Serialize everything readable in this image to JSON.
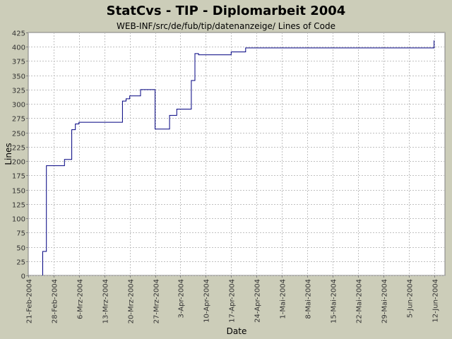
{
  "title": "StatCvs - TIP - Diplomarbeit 2004",
  "subtitle": "WEB-INF/src/de/fub/tip/datenanzeige/ Lines of Code",
  "chart_data": {
    "type": "line",
    "step": true,
    "xlabel": "Date",
    "ylabel": "Lines",
    "ylim": [
      0,
      425
    ],
    "xlim": [
      "2004-02-21",
      "2004-06-15"
    ],
    "grid": true,
    "line_color": "#000080",
    "yticks": [
      0,
      25,
      50,
      75,
      100,
      125,
      150,
      175,
      200,
      225,
      250,
      275,
      300,
      325,
      350,
      375,
      400,
      425
    ],
    "xticks": [
      {
        "date": "2004-02-21",
        "label": "21-Feb-2004"
      },
      {
        "date": "2004-02-28",
        "label": "28-Feb-2004"
      },
      {
        "date": "2004-03-06",
        "label": "6-Mrz-2004"
      },
      {
        "date": "2004-03-13",
        "label": "13-Mrz-2004"
      },
      {
        "date": "2004-03-20",
        "label": "20-Mrz-2004"
      },
      {
        "date": "2004-03-27",
        "label": "27-Mrz-2004"
      },
      {
        "date": "2004-04-03",
        "label": "3-Apr-2004"
      },
      {
        "date": "2004-04-10",
        "label": "10-Apr-2004"
      },
      {
        "date": "2004-04-17",
        "label": "17-Apr-2004"
      },
      {
        "date": "2004-04-24",
        "label": "24-Apr-2004"
      },
      {
        "date": "2004-05-01",
        "label": "1-Mai-2004"
      },
      {
        "date": "2004-05-08",
        "label": "8-Mai-2004"
      },
      {
        "date": "2004-05-15",
        "label": "15-Mai-2004"
      },
      {
        "date": "2004-05-22",
        "label": "22-Mai-2004"
      },
      {
        "date": "2004-05-29",
        "label": "29-Mai-2004"
      },
      {
        "date": "2004-06-05",
        "label": "5-Jun-2004"
      },
      {
        "date": "2004-06-12",
        "label": "12-Jun-2004"
      }
    ],
    "points": [
      [
        "2004-02-25",
        0
      ],
      [
        "2004-02-25",
        42
      ],
      [
        "2004-02-26",
        42
      ],
      [
        "2004-02-26",
        192
      ],
      [
        "2004-03-02",
        192
      ],
      [
        "2004-03-02",
        203
      ],
      [
        "2004-03-04",
        203
      ],
      [
        "2004-03-04",
        255
      ],
      [
        "2004-03-05",
        255
      ],
      [
        "2004-03-05",
        265
      ],
      [
        "2004-03-06",
        265
      ],
      [
        "2004-03-06",
        268
      ],
      [
        "2004-03-18",
        268
      ],
      [
        "2004-03-18",
        305
      ],
      [
        "2004-03-19",
        305
      ],
      [
        "2004-03-19",
        309
      ],
      [
        "2004-03-20",
        309
      ],
      [
        "2004-03-20",
        314
      ],
      [
        "2004-03-23",
        314
      ],
      [
        "2004-03-23",
        325
      ],
      [
        "2004-03-27",
        325
      ],
      [
        "2004-03-27",
        256
      ],
      [
        "2004-03-31",
        256
      ],
      [
        "2004-03-31",
        280
      ],
      [
        "2004-04-02",
        280
      ],
      [
        "2004-04-02",
        291
      ],
      [
        "2004-04-06",
        291
      ],
      [
        "2004-04-06",
        341
      ],
      [
        "2004-04-07",
        341
      ],
      [
        "2004-04-07",
        388
      ],
      [
        "2004-04-08",
        388
      ],
      [
        "2004-04-08",
        386
      ],
      [
        "2004-04-17",
        386
      ],
      [
        "2004-04-17",
        391
      ],
      [
        "2004-04-21",
        391
      ],
      [
        "2004-04-21",
        398
      ],
      [
        "2004-06-12",
        398
      ],
      [
        "2004-06-12",
        411
      ]
    ]
  }
}
